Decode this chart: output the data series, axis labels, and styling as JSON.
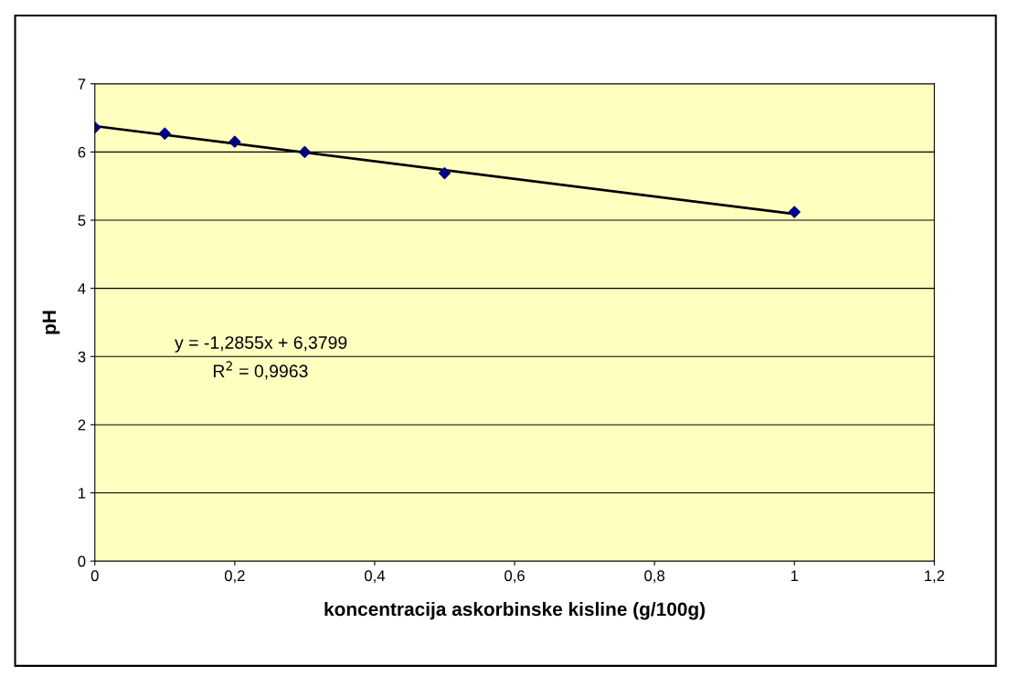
{
  "chart_data": {
    "type": "scatter",
    "xlabel": "koncentracija askorbinske kisline (g/100g)",
    "ylabel": "pH",
    "x": [
      0,
      0.1,
      0.2,
      0.3,
      0.5,
      1.0
    ],
    "series": [
      {
        "color": "#000080",
        "marker": "diamond",
        "values": [
          6.36,
          6.27,
          6.15,
          6.0,
          5.69,
          5.12
        ]
      },
      {
        "type": "line",
        "color": "#000000",
        "marker": "none",
        "line_style": "solid",
        "x": [
          0,
          1.0
        ],
        "values": [
          6.38,
          5.09
        ]
      }
    ],
    "xlim": [
      0,
      1.2
    ],
    "xticks": [
      0,
      {
        "value": 0.2,
        "label": "0,2"
      },
      {
        "value": 0.4,
        "label": "0,4"
      },
      {
        "value": 0.6,
        "label": "0,6"
      },
      {
        "value": 0.8,
        "label": "0,8"
      },
      1,
      {
        "value": 1.2,
        "label": "1,2"
      }
    ],
    "ylim": [
      0,
      7
    ],
    "yticks": [
      0,
      1,
      2,
      3,
      4,
      5,
      6,
      7
    ],
    "grid": "y",
    "annotations": [
      "y = -1,2855x + 6,3799",
      "R$^{2}$ = 0,9963"
    ]
  }
}
